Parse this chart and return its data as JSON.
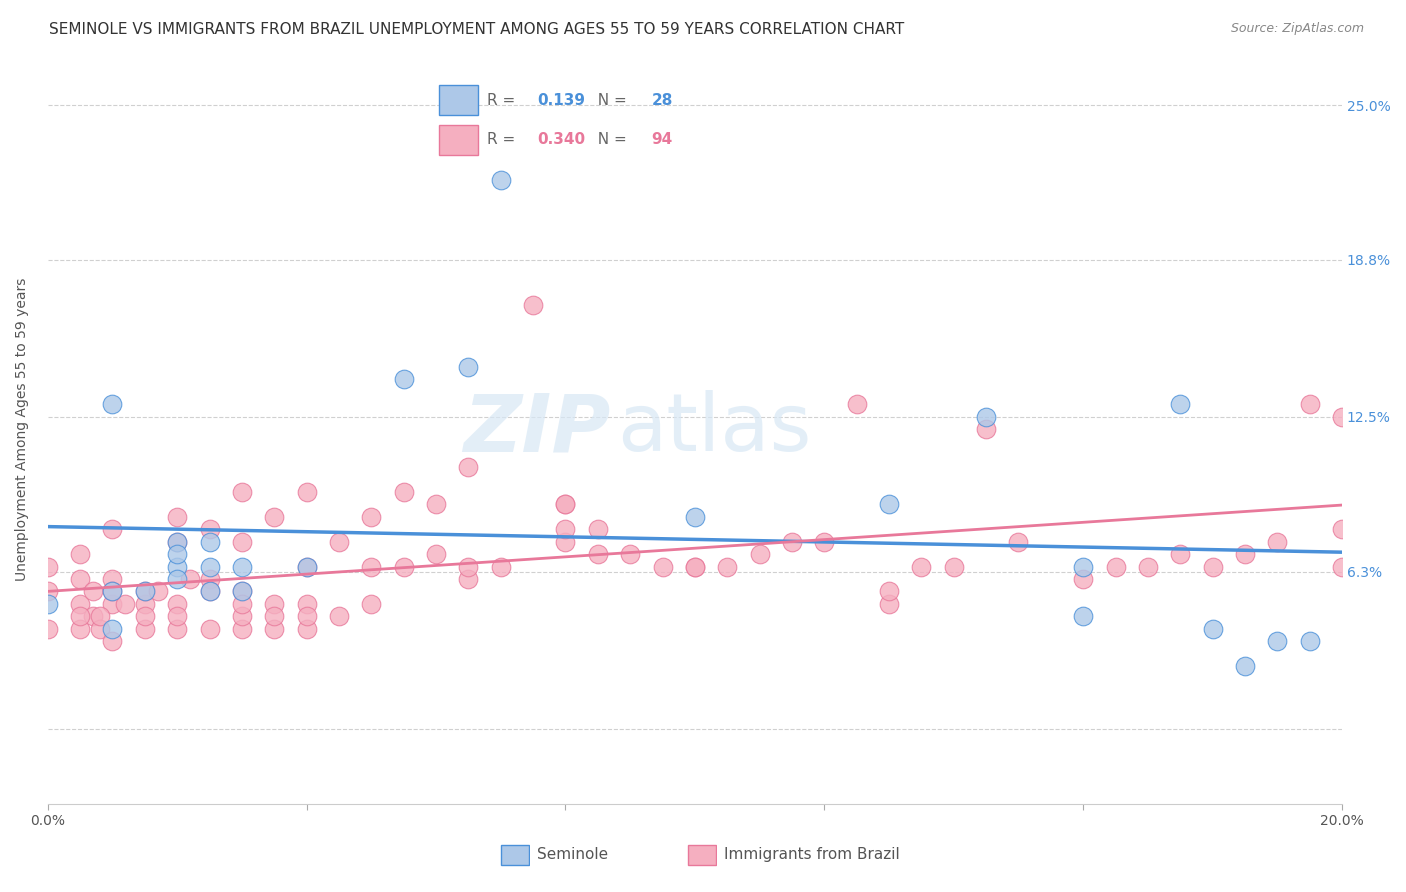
{
  "title": "SEMINOLE VS IMMIGRANTS FROM BRAZIL UNEMPLOYMENT AMONG AGES 55 TO 59 YEARS CORRELATION CHART",
  "source": "Source: ZipAtlas.com",
  "ylabel": "Unemployment Among Ages 55 to 59 years",
  "xlabel_seminole": "Seminole",
  "xlabel_brazil": "Immigrants from Brazil",
  "xlim": [
    0.0,
    0.2
  ],
  "ylim": [
    -0.03,
    0.27
  ],
  "yticks": [
    0.0,
    0.063,
    0.125,
    0.188,
    0.25
  ],
  "ytick_labels_right": [
    "",
    "6.3%",
    "12.5%",
    "18.8%",
    "25.0%"
  ],
  "xticks": [
    0.0,
    0.04,
    0.08,
    0.12,
    0.16,
    0.2
  ],
  "xtick_labels": [
    "0.0%",
    "",
    "",
    "",
    "",
    "20.0%"
  ],
  "seminole_R": "0.139",
  "seminole_N": "28",
  "brazil_R": "0.340",
  "brazil_N": "94",
  "seminole_color": "#adc8e8",
  "brazil_color": "#f5afc0",
  "seminole_line_color": "#4a90d9",
  "brazil_line_color": "#e8789a",
  "seminole_x": [
    0.0,
    0.01,
    0.01,
    0.015,
    0.02,
    0.02,
    0.025,
    0.025,
    0.03,
    0.04,
    0.055,
    0.065,
    0.07,
    0.1,
    0.13,
    0.145,
    0.16,
    0.175,
    0.185,
    0.19,
    0.195,
    0.02,
    0.025,
    0.03,
    0.01,
    0.02,
    0.16,
    0.18
  ],
  "seminole_y": [
    0.05,
    0.055,
    0.13,
    0.055,
    0.065,
    0.075,
    0.065,
    0.075,
    0.065,
    0.065,
    0.14,
    0.145,
    0.22,
    0.085,
    0.09,
    0.125,
    0.065,
    0.13,
    0.025,
    0.035,
    0.035,
    0.06,
    0.055,
    0.055,
    0.04,
    0.07,
    0.045,
    0.04
  ],
  "brazil_x": [
    0.0,
    0.0,
    0.0,
    0.005,
    0.005,
    0.005,
    0.005,
    0.007,
    0.007,
    0.008,
    0.01,
    0.01,
    0.01,
    0.01,
    0.012,
    0.015,
    0.015,
    0.015,
    0.017,
    0.02,
    0.02,
    0.02,
    0.02,
    0.022,
    0.025,
    0.025,
    0.025,
    0.03,
    0.03,
    0.03,
    0.03,
    0.03,
    0.035,
    0.035,
    0.035,
    0.04,
    0.04,
    0.04,
    0.04,
    0.045,
    0.045,
    0.05,
    0.05,
    0.055,
    0.055,
    0.06,
    0.065,
    0.065,
    0.07,
    0.075,
    0.08,
    0.08,
    0.085,
    0.09,
    0.095,
    0.1,
    0.105,
    0.11,
    0.115,
    0.12,
    0.125,
    0.13,
    0.135,
    0.14,
    0.145,
    0.15,
    0.16,
    0.165,
    0.17,
    0.175,
    0.18,
    0.185,
    0.19,
    0.195,
    0.2,
    0.2,
    0.005,
    0.008,
    0.01,
    0.015,
    0.02,
    0.025,
    0.03,
    0.035,
    0.04,
    0.05,
    0.06,
    0.065,
    0.08,
    0.08,
    0.085,
    0.1,
    0.13,
    0.2
  ],
  "brazil_y": [
    0.04,
    0.055,
    0.065,
    0.04,
    0.05,
    0.06,
    0.07,
    0.045,
    0.055,
    0.04,
    0.035,
    0.05,
    0.06,
    0.08,
    0.05,
    0.04,
    0.05,
    0.055,
    0.055,
    0.04,
    0.05,
    0.075,
    0.085,
    0.06,
    0.04,
    0.06,
    0.08,
    0.04,
    0.045,
    0.055,
    0.075,
    0.095,
    0.04,
    0.05,
    0.085,
    0.04,
    0.05,
    0.065,
    0.095,
    0.045,
    0.075,
    0.05,
    0.085,
    0.065,
    0.095,
    0.07,
    0.06,
    0.105,
    0.065,
    0.17,
    0.075,
    0.09,
    0.07,
    0.07,
    0.065,
    0.065,
    0.065,
    0.07,
    0.075,
    0.075,
    0.13,
    0.05,
    0.065,
    0.065,
    0.12,
    0.075,
    0.06,
    0.065,
    0.065,
    0.07,
    0.065,
    0.07,
    0.075,
    0.13,
    0.065,
    0.125,
    0.045,
    0.045,
    0.055,
    0.045,
    0.045,
    0.055,
    0.05,
    0.045,
    0.045,
    0.065,
    0.09,
    0.065,
    0.08,
    0.09,
    0.08,
    0.065,
    0.055,
    0.08
  ],
  "watermark_zip": "ZIP",
  "watermark_atlas": "atlas",
  "background_color": "#ffffff",
  "grid_color": "#d0d0d0",
  "title_fontsize": 11,
  "label_fontsize": 10,
  "tick_fontsize": 10,
  "legend_fontsize": 11
}
